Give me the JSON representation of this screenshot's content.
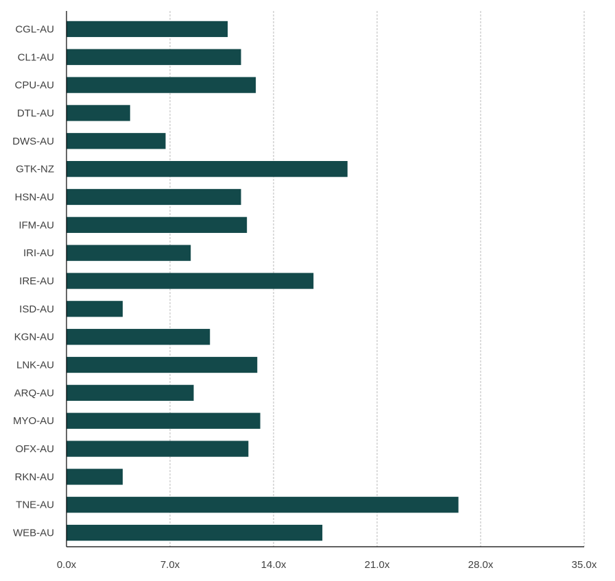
{
  "chart_data": {
    "type": "bar",
    "orientation": "horizontal",
    "title": "",
    "xlabel": "",
    "ylabel": "",
    "categories": [
      "CGL-AU",
      "CL1-AU",
      "CPU-AU",
      "DTL-AU",
      "DWS-AU",
      "GTK-NZ",
      "HSN-AU",
      "IFM-AU",
      "IRI-AU",
      "IRE-AU",
      "ISD-AU",
      "KGN-AU",
      "LNK-AU",
      "ARQ-AU",
      "MYO-AU",
      "OFX-AU",
      "RKN-AU",
      "TNE-AU",
      "WEB-AU"
    ],
    "values": [
      10.9,
      11.8,
      12.8,
      4.3,
      6.7,
      19.0,
      11.8,
      12.2,
      8.4,
      16.7,
      3.8,
      9.7,
      12.9,
      8.6,
      13.1,
      12.3,
      3.8,
      26.5,
      17.3
    ],
    "xlim": [
      0,
      35
    ],
    "x_ticks": [
      0,
      7,
      14,
      21,
      28,
      35
    ],
    "x_tick_labels": [
      "0.0x",
      "7.0x",
      "14.0x",
      "21.0x",
      "28.0x",
      "35.0x"
    ],
    "grid": "vertical",
    "legend": "none",
    "colors": {
      "bar": "#13494a"
    }
  }
}
